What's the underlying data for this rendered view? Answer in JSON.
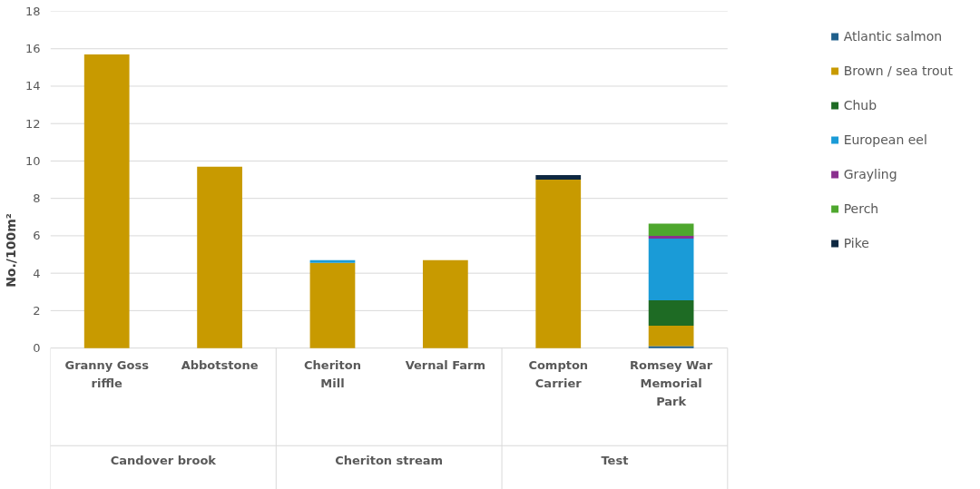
{
  "chart_data": {
    "type": "bar",
    "stacked": true,
    "categories": [
      "Granny Goss riffle",
      "Abbotstone",
      "Cheriton Mill",
      "Vernal Farm",
      "Compton Carrier",
      "Romsey War Memorial Park"
    ],
    "annotations": [
      "Candover brook",
      "Cheriton stream",
      "Test"
    ],
    "ylabel": "No./100m²",
    "ylim": [
      0,
      18
    ],
    "yticks": [
      0,
      2,
      4,
      6,
      8,
      10,
      12,
      14,
      16,
      18
    ],
    "grid": "y",
    "legend": "right",
    "series": [
      {
        "name": "Atlantic salmon",
        "color": "#1f5f8b",
        "values": [
          0,
          0,
          0,
          0,
          0,
          0.1
        ]
      },
      {
        "name": "Brown / sea trout",
        "color": "#c89a00",
        "values": [
          15.7,
          9.7,
          4.55,
          4.7,
          9.0,
          1.1
        ]
      },
      {
        "name": "Chub",
        "color": "#1e6b24",
        "values": [
          0,
          0,
          0,
          0,
          0,
          1.35
        ]
      },
      {
        "name": "European eel",
        "color": "#1a9bd7",
        "values": [
          0,
          0,
          0.15,
          0,
          0,
          3.3
        ]
      },
      {
        "name": "Grayling",
        "color": "#8a2f8e",
        "values": [
          0,
          0,
          0,
          0,
          0,
          0.15
        ]
      },
      {
        "name": "Perch",
        "color": "#4ea72e",
        "values": [
          0,
          0,
          0,
          0,
          0,
          0.65
        ]
      },
      {
        "name": "Pike",
        "color": "#0e2841",
        "values": [
          0,
          0,
          0,
          0,
          0.25,
          0
        ]
      }
    ]
  }
}
